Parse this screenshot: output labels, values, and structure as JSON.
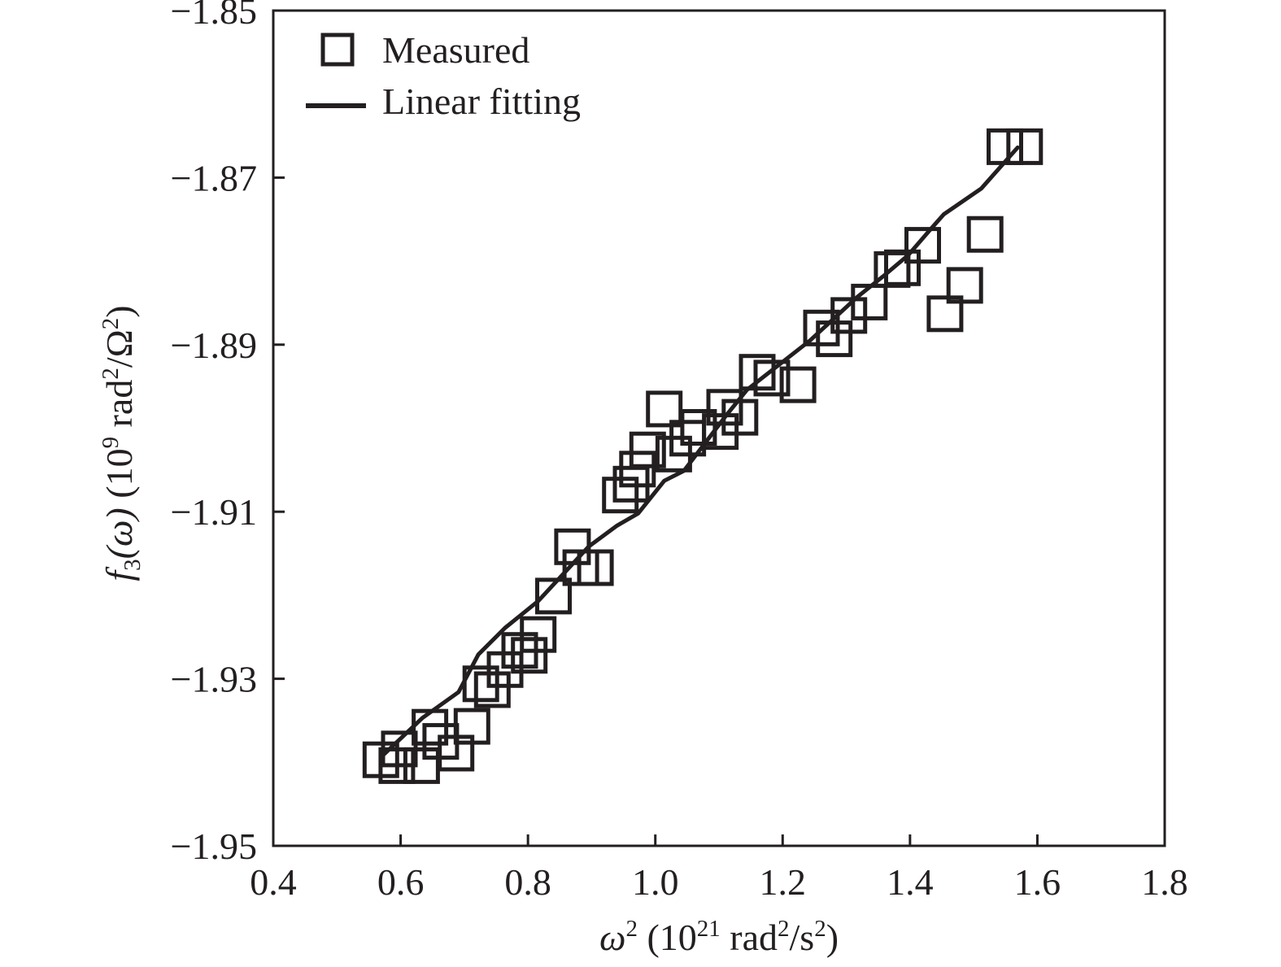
{
  "colors": {
    "ink": "#231f20",
    "background": "#ffffff"
  },
  "chart_data": {
    "type": "scatter",
    "xlim": [
      0.4,
      1.8
    ],
    "ylim": [
      -1.95,
      -1.85
    ],
    "xticks": [
      0.4,
      0.6,
      0.8,
      1.0,
      1.2,
      1.4,
      1.6,
      1.8
    ],
    "yticks": [
      -1.85,
      -1.87,
      -1.89,
      -1.91,
      -1.93,
      -1.95
    ],
    "xtick_labels": [
      "0.4",
      "0.6",
      "0.8",
      "1.0",
      "1.2",
      "1.4",
      "1.6",
      "1.8"
    ],
    "ytick_labels": [
      "−1.85",
      "−1.87",
      "−1.89",
      "−1.91",
      "−1.93",
      "−1.95"
    ],
    "xlabel": {
      "sym": "ω",
      "sym_sup": "2",
      "open": " (10",
      "exp": "21",
      "unit1": " rad",
      "unit1_sup": "2",
      "unit2": "/s",
      "unit2_sup": "2",
      "close": ")"
    },
    "ylabel": {
      "f": "f",
      "f_sub": "3",
      "arg": "(ω)",
      "open": " (10",
      "exp": "9",
      "unit1": " rad",
      "unit1_sup": "2",
      "unit2": "/Ω",
      "unit2_sup": "2",
      "close": ")"
    },
    "grid": false,
    "legend_position": "top-left",
    "legend": [
      {
        "label": "Measured",
        "marker": "square"
      },
      {
        "label": "Linear fitting",
        "marker": "line"
      }
    ],
    "series": [
      {
        "name": "Measured",
        "style": "open-square",
        "points": [
          [
            0.569,
            -1.9397
          ],
          [
            0.594,
            -1.9404
          ],
          [
            0.598,
            -1.9384
          ],
          [
            0.633,
            -1.9404
          ],
          [
            0.646,
            -1.9358
          ],
          [
            0.663,
            -1.9375
          ],
          [
            0.687,
            -1.9389
          ],
          [
            0.712,
            -1.9357
          ],
          [
            0.726,
            -1.9306
          ],
          [
            0.744,
            -1.9313
          ],
          [
            0.764,
            -1.9289
          ],
          [
            0.787,
            -1.9266
          ],
          [
            0.802,
            -1.9272
          ],
          [
            0.816,
            -1.9247
          ],
          [
            0.84,
            -1.9201
          ],
          [
            0.87,
            -1.9142
          ],
          [
            0.883,
            -1.9167
          ],
          [
            0.906,
            -1.9167
          ],
          [
            0.945,
            -1.908
          ],
          [
            0.962,
            -1.9067
          ],
          [
            0.972,
            -1.9049
          ],
          [
            0.988,
            -1.9026
          ],
          [
            1.014,
            -1.8977
          ],
          [
            1.029,
            -1.9031
          ],
          [
            1.051,
            -1.9012
          ],
          [
            1.068,
            -1.8999
          ],
          [
            1.102,
            -1.9004
          ],
          [
            1.109,
            -1.8975
          ],
          [
            1.133,
            -1.8987
          ],
          [
            1.16,
            -1.8933
          ],
          [
            1.183,
            -1.894
          ],
          [
            1.224,
            -1.8948
          ],
          [
            1.261,
            -1.888
          ],
          [
            1.281,
            -1.8893
          ],
          [
            1.304,
            -1.8865
          ],
          [
            1.336,
            -1.8849
          ],
          [
            1.372,
            -1.881
          ],
          [
            1.388,
            -1.8808
          ],
          [
            1.42,
            -1.8781
          ],
          [
            1.455,
            -1.8863
          ],
          [
            1.486,
            -1.8829
          ],
          [
            1.518,
            -1.8768
          ],
          [
            1.549,
            -1.8663
          ],
          [
            1.58,
            -1.8663
          ]
        ]
      },
      {
        "name": "Linear fitting",
        "style": "line",
        "points": [
          [
            0.569,
            -1.9394
          ],
          [
            0.634,
            -1.9347
          ],
          [
            0.691,
            -1.9316
          ],
          [
            0.722,
            -1.9271
          ],
          [
            0.764,
            -1.9239
          ],
          [
            0.816,
            -1.9207
          ],
          [
            0.895,
            -1.9142
          ],
          [
            0.939,
            -1.9117
          ],
          [
            0.973,
            -1.9102
          ],
          [
            1.014,
            -1.9063
          ],
          [
            1.045,
            -1.9051
          ],
          [
            1.111,
            -1.8985
          ],
          [
            1.144,
            -1.8954
          ],
          [
            1.243,
            -1.8895
          ],
          [
            1.317,
            -1.8843
          ],
          [
            1.358,
            -1.8818
          ],
          [
            1.397,
            -1.8793
          ],
          [
            1.431,
            -1.8763
          ],
          [
            1.453,
            -1.8744
          ],
          [
            1.512,
            -1.8713
          ],
          [
            1.569,
            -1.8664
          ]
        ]
      }
    ]
  }
}
